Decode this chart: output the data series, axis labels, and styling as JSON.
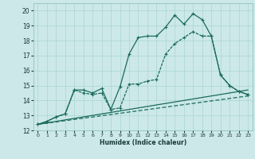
{
  "background_color": "#cce8e8",
  "grid_color": "#aad4d4",
  "line_color": "#1a6b5a",
  "xlabel": "Humidex (Indice chaleur)",
  "xlim": [
    -0.5,
    23.5
  ],
  "ylim": [
    12,
    20.5
  ],
  "yticks": [
    12,
    13,
    14,
    15,
    16,
    17,
    18,
    19,
    20
  ],
  "xticks": [
    0,
    1,
    2,
    3,
    4,
    5,
    6,
    7,
    8,
    9,
    10,
    11,
    12,
    13,
    14,
    15,
    16,
    17,
    18,
    19,
    20,
    21,
    22,
    23
  ],
  "line1_x": [
    0,
    1,
    2,
    3,
    4,
    5,
    6,
    7,
    8,
    9,
    10,
    11,
    12,
    13,
    14,
    15,
    16,
    17,
    18,
    19,
    20,
    21,
    22,
    23
  ],
  "line1_y": [
    12.4,
    12.6,
    12.9,
    13.1,
    14.7,
    14.7,
    14.5,
    14.8,
    13.4,
    14.9,
    17.1,
    18.2,
    18.3,
    18.3,
    18.9,
    19.7,
    19.1,
    19.8,
    19.4,
    18.3,
    15.7,
    15.0,
    14.6,
    14.4
  ],
  "line2_x": [
    0,
    1,
    2,
    3,
    4,
    5,
    6,
    7,
    8,
    9,
    10,
    11,
    12,
    13,
    14,
    15,
    16,
    17,
    18,
    19,
    20,
    21,
    22,
    23
  ],
  "line2_y": [
    12.4,
    12.6,
    12.9,
    13.1,
    14.7,
    14.5,
    14.4,
    14.5,
    13.4,
    13.5,
    15.1,
    15.1,
    15.3,
    15.4,
    17.1,
    17.8,
    18.2,
    18.6,
    18.3,
    18.3,
    15.7,
    15.0,
    14.6,
    14.4
  ],
  "line3_x": [
    0,
    23
  ],
  "line3_y": [
    12.4,
    14.7
  ],
  "line4_x": [
    0,
    23
  ],
  "line4_y": [
    12.4,
    14.3
  ]
}
